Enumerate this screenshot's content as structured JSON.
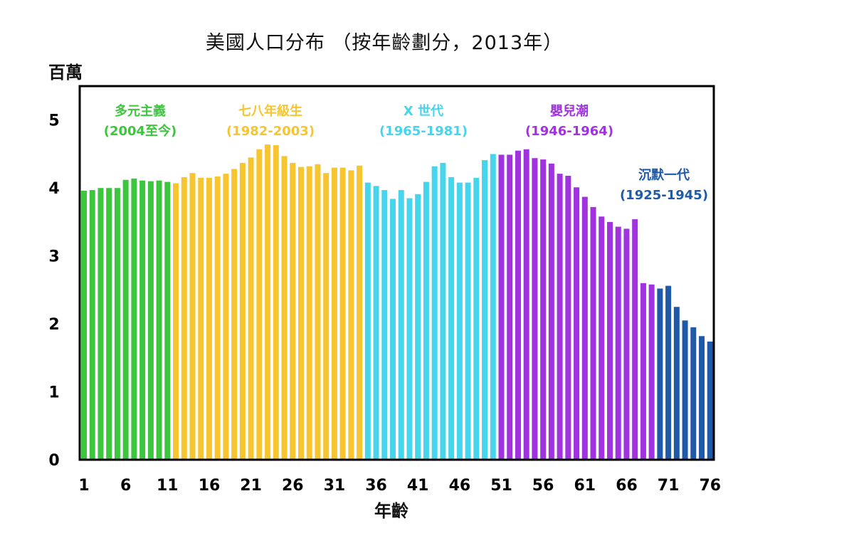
{
  "chart_data": {
    "type": "bar",
    "title": "美國人口分布 （按年齡劃分，2013年）",
    "ylabel": "百萬",
    "xlabel": "年齡",
    "ylim": [
      0,
      5.5
    ],
    "xlim": [
      1,
      76
    ],
    "y_ticks": [
      "0",
      "1",
      "2",
      "3",
      "4",
      "5"
    ],
    "x_ticks": [
      "1",
      "6",
      "11",
      "16",
      "21",
      "26",
      "31",
      "36",
      "41",
      "46",
      "51",
      "56",
      "61",
      "66",
      "71",
      "76"
    ],
    "ages": [
      1,
      2,
      3,
      4,
      5,
      6,
      7,
      8,
      9,
      10,
      11,
      12,
      13,
      14,
      15,
      16,
      17,
      18,
      19,
      20,
      21,
      22,
      23,
      24,
      25,
      26,
      27,
      28,
      29,
      30,
      31,
      32,
      33,
      34,
      35,
      36,
      37,
      38,
      39,
      40,
      41,
      42,
      43,
      44,
      45,
      46,
      47,
      48,
      49,
      50,
      51,
      52,
      53,
      54,
      55,
      56,
      57,
      58,
      59,
      60,
      61,
      62,
      63,
      64,
      65,
      66,
      67,
      68,
      69,
      70,
      71,
      72,
      73,
      74,
      75,
      76
    ],
    "values": [
      3.96,
      3.97,
      4.0,
      4.0,
      4.0,
      4.12,
      4.14,
      4.11,
      4.1,
      4.11,
      4.09,
      4.07,
      4.16,
      4.22,
      4.15,
      4.15,
      4.17,
      4.21,
      4.28,
      4.37,
      4.45,
      4.57,
      4.64,
      4.63,
      4.47,
      4.37,
      4.31,
      4.32,
      4.35,
      4.22,
      4.3,
      4.3,
      4.26,
      4.33,
      4.08,
      4.03,
      3.97,
      3.84,
      3.97,
      3.85,
      3.91,
      4.09,
      4.32,
      4.37,
      4.16,
      4.08,
      4.08,
      4.15,
      4.41,
      4.5,
      4.49,
      4.49,
      4.55,
      4.57,
      4.44,
      4.42,
      4.36,
      4.21,
      4.18,
      4.01,
      3.87,
      3.72,
      3.58,
      3.5,
      3.43,
      3.4,
      3.54,
      2.6,
      2.58,
      2.52,
      2.56,
      2.25,
      2.05,
      1.95,
      1.82,
      1.74
    ],
    "grid": false,
    "series": [
      {
        "name": "多元主義",
        "years": "(2004至今)",
        "color": "#3ec53e",
        "age_range": [
          1,
          11
        ]
      },
      {
        "name": "七八年級生",
        "years": "(1982-2003)",
        "color": "#f7c530",
        "age_range": [
          12,
          34
        ]
      },
      {
        "name": "X 世代",
        "years": "(1965-1981)",
        "color": "#47d5ee",
        "age_range": [
          35,
          50
        ]
      },
      {
        "name": "嬰兒潮",
        "years": "(1946-1964)",
        "color": "#a132df",
        "age_range": [
          51,
          69
        ]
      },
      {
        "name": "沉默一代",
        "years": "(1925-1945)",
        "color": "#1e5aa8",
        "age_range": [
          70,
          76
        ]
      }
    ]
  }
}
